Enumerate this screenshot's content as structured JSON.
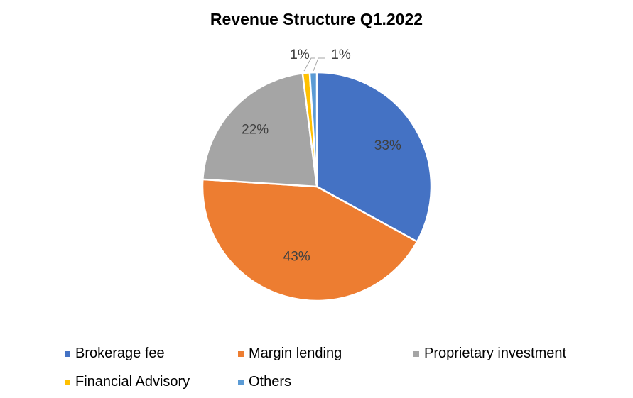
{
  "chart_data": {
    "type": "pie",
    "title": "Revenue Structure Q1.2022",
    "categories": [
      "Brokerage fee",
      "Margin lending",
      "Proprietary investment",
      "Financial Advisory",
      "Others"
    ],
    "values": [
      33,
      43,
      22,
      1,
      1
    ],
    "labels": [
      "33%",
      "43%",
      "22%",
      "1%",
      "1%"
    ],
    "colors": [
      "#4472C4",
      "#ED7D31",
      "#A5A5A5",
      "#FFC000",
      "#5B9BD5"
    ],
    "legend_position": "bottom"
  }
}
